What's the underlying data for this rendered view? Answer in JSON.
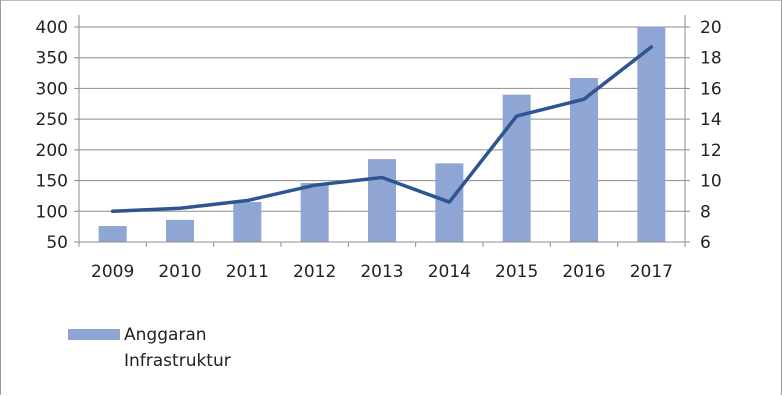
{
  "chart_data": {
    "type": "bar",
    "categories": [
      "2009",
      "2010",
      "2011",
      "2012",
      "2013",
      "2014",
      "2015",
      "2016",
      "2017"
    ],
    "series": [
      {
        "name": "Anggaran Infrastruktur",
        "type": "bar",
        "axis": "left",
        "values": [
          76,
          86,
          115,
          146,
          185,
          178,
          290,
          317,
          401
        ]
      },
      {
        "type": "line",
        "axis": "right",
        "values": [
          8.0,
          8.2,
          8.7,
          9.7,
          10.2,
          8.6,
          14.2,
          15.3,
          18.7
        ]
      }
    ],
    "y_left": {
      "min": 50,
      "max": 400,
      "ticks": [
        "400",
        "350",
        "300",
        "250",
        "200",
        "150",
        "100",
        "50"
      ]
    },
    "y_right": {
      "min": 6,
      "max": 20,
      "ticks": [
        "20",
        "18",
        "16",
        "14",
        "12",
        "10",
        "8",
        "6"
      ]
    },
    "grid": true,
    "legend_position": "bottom-left",
    "colors": {
      "bar": "#8fa5d4",
      "line": "#2e5592",
      "grid": "#8c8c8c"
    }
  },
  "legend": {
    "line1": "Anggaran",
    "line2": "Infrastruktur"
  }
}
